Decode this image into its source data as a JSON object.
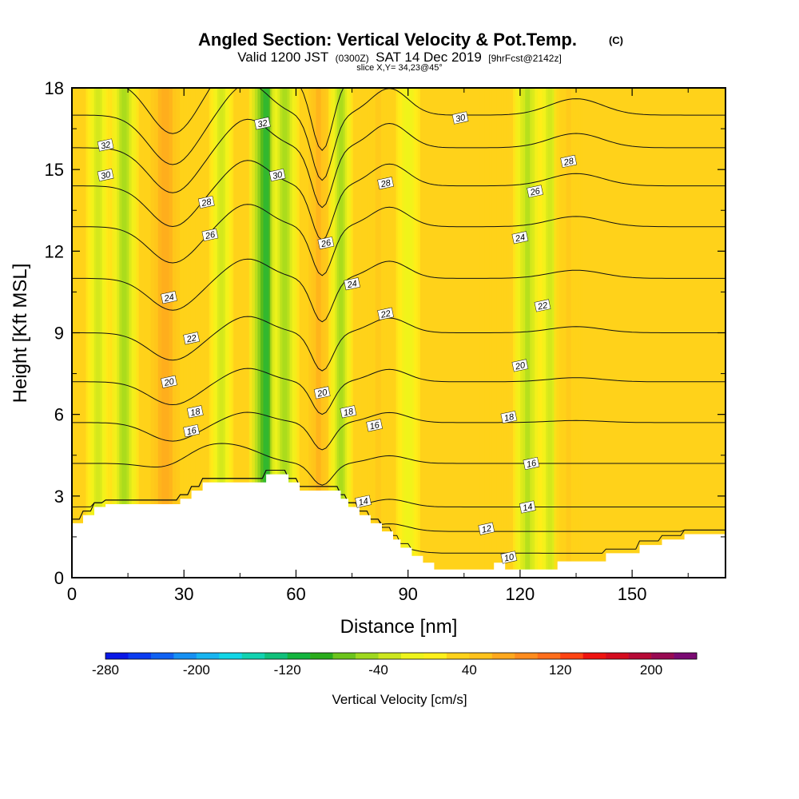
{
  "title": {
    "main": "Angled Section: Vertical Velocity & Pot.Temp.",
    "copyright": "(C)",
    "valid_prefix": "Valid 1200 JST",
    "valid_utc": "(0300Z)",
    "valid_date": "SAT 14 Dec 2019",
    "forecast": "[9hrFcst@2142z]",
    "slice": "slice X,Y= 34,23@45°"
  },
  "chart_data": {
    "type": "heatmap",
    "xlabel": "Distance [nm]",
    "ylabel": "Height [Kft MSL]",
    "xlim": [
      0,
      175
    ],
    "ylim": [
      0,
      18
    ],
    "x_ticks": [
      0,
      30,
      60,
      90,
      120,
      150
    ],
    "y_ticks": [
      0,
      3,
      6,
      9,
      12,
      15,
      18
    ],
    "colorbar": {
      "label": "Vertical Velocity [cm/s]",
      "tick_values": [
        -280,
        -200,
        -120,
        -40,
        40,
        120,
        200
      ],
      "colors": [
        "#0a18e6",
        "#0c3cf0",
        "#1062f2",
        "#1690f2",
        "#18b4f0",
        "#12d6e6",
        "#12d2b0",
        "#10c07a",
        "#14b43e",
        "#2aac1c",
        "#6cc41c",
        "#9ed81e",
        "#cce61e",
        "#eef41c",
        "#fff01a",
        "#ffd21a",
        "#ffc21c",
        "#ffa81e",
        "#ff8c1e",
        "#ff6e1c",
        "#ff4414",
        "#ee1410",
        "#d40c1e",
        "#b60a36",
        "#980a52",
        "#7a0a72"
      ]
    },
    "vertical_velocity_bands": [
      {
        "x": 7,
        "w": 5,
        "value": -30
      },
      {
        "x": 14,
        "w": 6,
        "value": -60
      },
      {
        "x": 25,
        "w": 9,
        "value": 70
      },
      {
        "x": 35,
        "w": 6,
        "value": 30
      },
      {
        "x": 40,
        "w": 5,
        "value": -30
      },
      {
        "x": 52,
        "w": 7,
        "value": -120
      },
      {
        "x": 57,
        "w": 6,
        "value": -60
      },
      {
        "x": 66,
        "w": 6,
        "value": 60
      },
      {
        "x": 72,
        "w": 5,
        "value": -60
      },
      {
        "x": 82,
        "w": 7,
        "value": 40
      },
      {
        "x": 90,
        "w": 5,
        "value": -20
      },
      {
        "x": 113,
        "w": 6,
        "value": 30
      },
      {
        "x": 122,
        "w": 6,
        "value": -50
      },
      {
        "x": 128,
        "w": 5,
        "value": -40
      },
      {
        "x": 133,
        "w": 6,
        "value": 40
      }
    ],
    "background_value": 20,
    "theta_contours": [
      {
        "value": 10,
        "label": "10",
        "label_x": 117,
        "label_y": 0.75
      },
      {
        "value": 12,
        "label": "12",
        "label_x": 111,
        "label_y": 1.8
      },
      {
        "value": 14,
        "label": "14",
        "label_x": 78,
        "label_y": 2.8
      },
      {
        "value": 14,
        "label": "14",
        "label_x": 122,
        "label_y": 2.6
      },
      {
        "value": 16,
        "label": "16",
        "label_x": 32,
        "label_y": 5.4
      },
      {
        "value": 16,
        "label": "16",
        "label_x": 81,
        "label_y": 5.6
      },
      {
        "value": 16,
        "label": "16",
        "label_x": 123,
        "label_y": 4.2
      },
      {
        "value": 18,
        "label": "18",
        "label_x": 33,
        "label_y": 6.1
      },
      {
        "value": 18,
        "label": "18",
        "label_x": 74,
        "label_y": 6.1
      },
      {
        "value": 18,
        "label": "18",
        "label_x": 117,
        "label_y": 5.9
      },
      {
        "value": 20,
        "label": "20",
        "label_x": 26,
        "label_y": 7.2
      },
      {
        "value": 20,
        "label": "20",
        "label_x": 67,
        "label_y": 6.8
      },
      {
        "value": 20,
        "label": "20",
        "label_x": 120,
        "label_y": 7.8
      },
      {
        "value": 22,
        "label": "22",
        "label_x": 32,
        "label_y": 8.8
      },
      {
        "value": 22,
        "label": "22",
        "label_x": 84,
        "label_y": 9.7
      },
      {
        "value": 22,
        "label": "22",
        "label_x": 126,
        "label_y": 10.0
      },
      {
        "value": 24,
        "label": "24",
        "label_x": 26,
        "label_y": 10.3
      },
      {
        "value": 24,
        "label": "24",
        "label_x": 75,
        "label_y": 10.8
      },
      {
        "value": 24,
        "label": "24",
        "label_x": 120,
        "label_y": 12.5
      },
      {
        "value": 26,
        "label": "26",
        "label_x": 37,
        "label_y": 12.6
      },
      {
        "value": 26,
        "label": "26",
        "label_x": 68,
        "label_y": 12.3
      },
      {
        "value": 26,
        "label": "26",
        "label_x": 124,
        "label_y": 14.2
      },
      {
        "value": 28,
        "label": "28",
        "label_x": 36,
        "label_y": 13.8
      },
      {
        "value": 28,
        "label": "28",
        "label_x": 84,
        "label_y": 14.5
      },
      {
        "value": 28,
        "label": "28",
        "label_x": 133,
        "label_y": 15.3
      },
      {
        "value": 30,
        "label": "30",
        "label_x": 9,
        "label_y": 14.8
      },
      {
        "value": 30,
        "label": "30",
        "label_x": 55,
        "label_y": 14.8
      },
      {
        "value": 30,
        "label": "30",
        "label_x": 104,
        "label_y": 16.9
      },
      {
        "value": 32,
        "label": "32",
        "label_x": 9,
        "label_y": 15.9
      },
      {
        "value": 32,
        "label": "32",
        "label_x": 51,
        "label_y": 16.7
      }
    ],
    "terrain": [
      [
        0,
        2.0
      ],
      [
        3,
        2.0
      ],
      [
        3,
        2.3
      ],
      [
        6,
        2.3
      ],
      [
        6,
        2.6
      ],
      [
        9,
        2.6
      ],
      [
        9,
        2.7
      ],
      [
        29,
        2.7
      ],
      [
        29,
        2.9
      ],
      [
        32,
        2.9
      ],
      [
        32,
        3.2
      ],
      [
        35,
        3.2
      ],
      [
        35,
        3.5
      ],
      [
        52,
        3.5
      ],
      [
        52,
        3.8
      ],
      [
        58,
        3.8
      ],
      [
        58,
        3.5
      ],
      [
        61,
        3.5
      ],
      [
        61,
        3.2
      ],
      [
        72,
        3.2
      ],
      [
        72,
        2.9
      ],
      [
        74,
        2.9
      ],
      [
        74,
        2.6
      ],
      [
        77,
        2.6
      ],
      [
        77,
        2.3
      ],
      [
        80,
        2.3
      ],
      [
        80,
        2.0
      ],
      [
        83,
        2.0
      ],
      [
        83,
        1.7
      ],
      [
        86,
        1.7
      ],
      [
        86,
        1.4
      ],
      [
        88,
        1.4
      ],
      [
        88,
        1.1
      ],
      [
        91,
        1.1
      ],
      [
        91,
        0.8
      ],
      [
        94,
        0.8
      ],
      [
        94,
        0.55
      ],
      [
        97,
        0.55
      ],
      [
        97,
        0.3
      ],
      [
        113,
        0.3
      ],
      [
        113,
        0.55
      ],
      [
        116,
        0.55
      ],
      [
        116,
        0.3
      ],
      [
        130,
        0.3
      ],
      [
        130,
        0.6
      ],
      [
        143,
        0.6
      ],
      [
        143,
        0.9
      ],
      [
        152,
        0.9
      ],
      [
        152,
        1.2
      ],
      [
        158,
        1.2
      ],
      [
        158,
        1.4
      ],
      [
        164,
        1.4
      ],
      [
        164,
        1.6
      ],
      [
        175,
        1.6
      ]
    ]
  }
}
